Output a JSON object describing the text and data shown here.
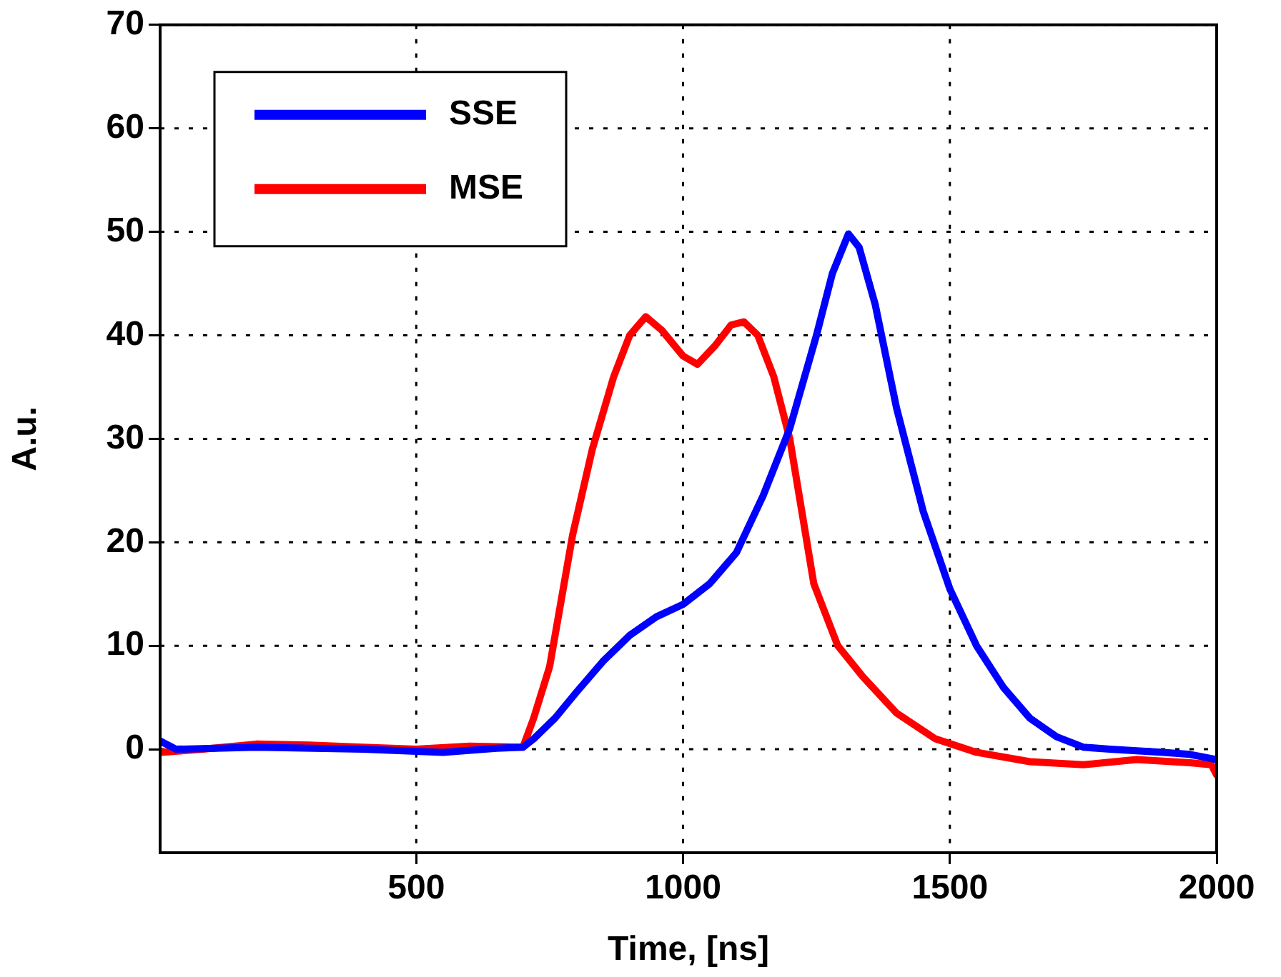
{
  "chart_data": {
    "type": "line",
    "xlabel": "Time, [ns]",
    "ylabel": "A.u.",
    "xlim": [
      20,
      2000
    ],
    "xticks": [
      500,
      1000,
      1500,
      2000
    ],
    "ylim": [
      -10,
      70
    ],
    "yticks": [
      0,
      10,
      20,
      30,
      40,
      50,
      60,
      70
    ],
    "grid": true,
    "legend": "top left",
    "marker": "none",
    "line_style": "solid",
    "series": [
      {
        "name": "SSE",
        "color": "#0000ff",
        "x": [
          20,
          50,
          200,
          400,
          550,
          650,
          700,
          720,
          760,
          800,
          850,
          900,
          950,
          1000,
          1050,
          1100,
          1150,
          1200,
          1250,
          1280,
          1310,
          1330,
          1360,
          1400,
          1450,
          1500,
          1550,
          1600,
          1650,
          1700,
          1750,
          1800,
          1900,
          1950,
          2000
        ],
        "values": [
          0.8,
          0,
          0.2,
          0,
          -0.3,
          0.1,
          0.2,
          1,
          3,
          5.5,
          8.5,
          11,
          12.8,
          14,
          16,
          19,
          24.5,
          31,
          40,
          46,
          49.8,
          48.5,
          43,
          33,
          23,
          15.5,
          10,
          6,
          3,
          1.2,
          0.2,
          0,
          -0.3,
          -0.5,
          -1
        ]
      },
      {
        "name": "MSE",
        "color": "#ff0000",
        "x": [
          20,
          100,
          200,
          300,
          400,
          500,
          600,
          700,
          720,
          750,
          793,
          830,
          870,
          900,
          930,
          960,
          1000,
          1027,
          1060,
          1090,
          1114,
          1140,
          1170,
          1200,
          1245,
          1290,
          1337,
          1400,
          1473,
          1550,
          1650,
          1750,
          1850,
          1950,
          1990,
          2000
        ],
        "values": [
          -0.3,
          0,
          0.5,
          0.4,
          0.2,
          0,
          0.3,
          0.2,
          3,
          8,
          20.7,
          29,
          36,
          40,
          41.8,
          40.5,
          38,
          37.2,
          39,
          41,
          41.3,
          40,
          36,
          30,
          16,
          10,
          7,
          3.5,
          1,
          -0.3,
          -1.2,
          -1.5,
          -1,
          -1.3,
          -1.5,
          -2.5
        ]
      }
    ]
  }
}
